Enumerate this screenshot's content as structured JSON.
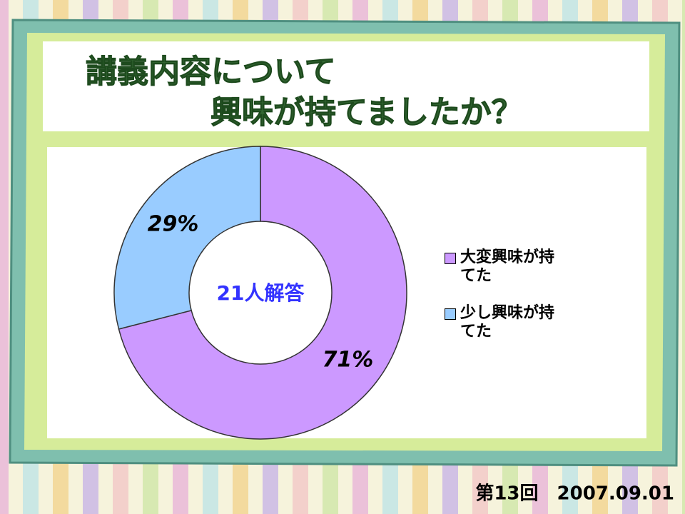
{
  "chart_data": {
    "type": "donut",
    "title": [
      "講義内容について",
      "興味が持てましたか？"
    ],
    "categories": [
      "大変興味が持てた",
      "少し興味が持てた"
    ],
    "values": [
      71,
      29
    ],
    "value_labels": [
      "71%",
      "29%"
    ],
    "colors": [
      "#cc99ff",
      "#99ccff"
    ],
    "center_label": "21人解答",
    "footer": "第13回　2007.09.01"
  }
}
